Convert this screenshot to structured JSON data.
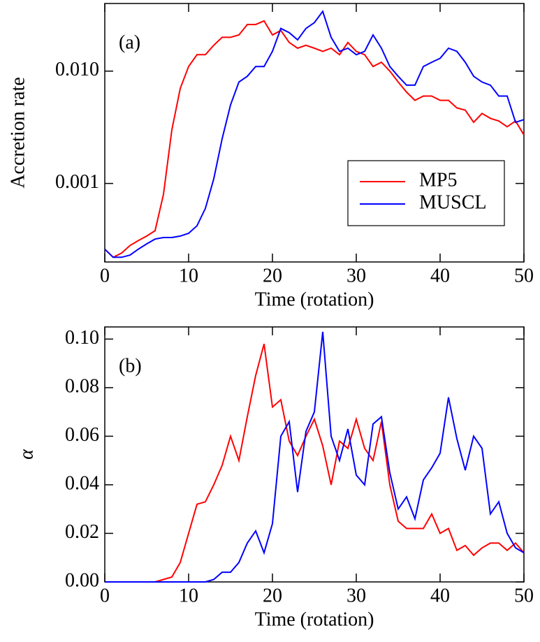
{
  "chart_data": [
    {
      "type": "line",
      "annotation": "(a)",
      "xlabel": "Time (rotation)",
      "ylabel": "Accretion rate",
      "log_y": true,
      "legend": "lower right",
      "x": [
        0,
        1,
        2,
        3,
        4,
        5,
        6,
        7,
        8,
        9,
        10,
        11,
        12,
        13,
        14,
        15,
        16,
        17,
        18,
        19,
        20,
        21,
        22,
        23,
        24,
        25,
        26,
        27,
        28,
        29,
        30,
        31,
        32,
        33,
        34,
        35,
        36,
        37,
        38,
        39,
        40,
        41,
        42,
        43,
        44,
        45,
        46,
        47,
        48,
        49,
        50
      ],
      "xlim": [
        0,
        50
      ],
      "xticks": [
        0,
        10,
        20,
        30,
        40,
        50
      ],
      "ylim": [
        0.0002,
        0.04
      ],
      "yticks": [
        {
          "value": 0.001,
          "label": "0.001"
        },
        {
          "value": 0.01,
          "label": "0.010"
        }
      ],
      "series": [
        {
          "name": "MP5",
          "color": "#ff0000",
          "values": [
            0.00026,
            0.00022,
            0.00024,
            0.00028,
            0.00031,
            0.00034,
            0.00038,
            0.0008,
            0.003,
            0.007,
            0.011,
            0.014,
            0.014,
            0.017,
            0.02,
            0.02,
            0.021,
            0.026,
            0.026,
            0.028,
            0.021,
            0.023,
            0.018,
            0.016,
            0.017,
            0.016,
            0.015,
            0.016,
            0.014,
            0.018,
            0.015,
            0.014,
            0.011,
            0.012,
            0.01,
            0.008,
            0.0065,
            0.0055,
            0.006,
            0.006,
            0.0055,
            0.0055,
            0.0047,
            0.0045,
            0.0035,
            0.0042,
            0.0038,
            0.0036,
            0.0032,
            0.0036,
            0.0027
          ]
        },
        {
          "name": "MUSCL",
          "color": "#0000ff",
          "values": [
            0.00026,
            0.00022,
            0.00022,
            0.00023,
            0.00026,
            0.00029,
            0.00032,
            0.00033,
            0.00033,
            0.00034,
            0.00036,
            0.00042,
            0.0006,
            0.0011,
            0.0025,
            0.005,
            0.008,
            0.009,
            0.011,
            0.011,
            0.015,
            0.024,
            0.022,
            0.019,
            0.024,
            0.027,
            0.034,
            0.02,
            0.015,
            0.016,
            0.014,
            0.015,
            0.021,
            0.016,
            0.011,
            0.009,
            0.0075,
            0.0075,
            0.011,
            0.012,
            0.013,
            0.016,
            0.015,
            0.012,
            0.009,
            0.008,
            0.0075,
            0.006,
            0.006,
            0.0035,
            0.0037
          ]
        }
      ]
    },
    {
      "type": "line",
      "annotation": "(b)",
      "xlabel": "Time (rotation)",
      "ylabel": "α",
      "log_y": false,
      "x": [
        0,
        1,
        2,
        3,
        4,
        5,
        6,
        7,
        8,
        9,
        10,
        11,
        12,
        13,
        14,
        15,
        16,
        17,
        18,
        19,
        20,
        21,
        22,
        23,
        24,
        25,
        26,
        27,
        28,
        29,
        30,
        31,
        32,
        33,
        34,
        35,
        36,
        37,
        38,
        39,
        40,
        41,
        42,
        43,
        44,
        45,
        46,
        47,
        48,
        49,
        50
      ],
      "xlim": [
        0,
        50
      ],
      "xticks": [
        0,
        10,
        20,
        30,
        40,
        50
      ],
      "ylim": [
        0,
        0.105
      ],
      "yticks": [
        {
          "value": 0,
          "label": "0.00"
        },
        {
          "value": 0.02,
          "label": "0.02"
        },
        {
          "value": 0.04,
          "label": "0.04"
        },
        {
          "value": 0.06,
          "label": "0.06"
        },
        {
          "value": 0.08,
          "label": "0.08"
        },
        {
          "value": 0.1,
          "label": "0.10"
        }
      ],
      "series": [
        {
          "color": "#ff0000",
          "values": [
            0,
            0,
            0,
            0,
            0,
            0,
            0,
            0.001,
            0.002,
            0.008,
            0.02,
            0.032,
            0.033,
            0.04,
            0.048,
            0.06,
            0.05,
            0.068,
            0.085,
            0.098,
            0.072,
            0.075,
            0.058,
            0.052,
            0.06,
            0.067,
            0.056,
            0.04,
            0.058,
            0.055,
            0.067,
            0.055,
            0.05,
            0.066,
            0.04,
            0.025,
            0.022,
            0.022,
            0.022,
            0.028,
            0.02,
            0.022,
            0.013,
            0.015,
            0.011,
            0.014,
            0.016,
            0.016,
            0.013,
            0.016,
            0.012
          ]
        },
        {
          "color": "#0000ff",
          "values": [
            0,
            0,
            0,
            0,
            0,
            0,
            0,
            0,
            0,
            0,
            0,
            0,
            0,
            0.001,
            0.004,
            0.004,
            0.008,
            0.016,
            0.021,
            0.012,
            0.024,
            0.06,
            0.066,
            0.037,
            0.062,
            0.07,
            0.103,
            0.06,
            0.05,
            0.063,
            0.044,
            0.04,
            0.065,
            0.068,
            0.045,
            0.03,
            0.035,
            0.026,
            0.042,
            0.047,
            0.053,
            0.076,
            0.059,
            0.046,
            0.06,
            0.055,
            0.028,
            0.033,
            0.02,
            0.014,
            0.012
          ]
        }
      ]
    }
  ]
}
